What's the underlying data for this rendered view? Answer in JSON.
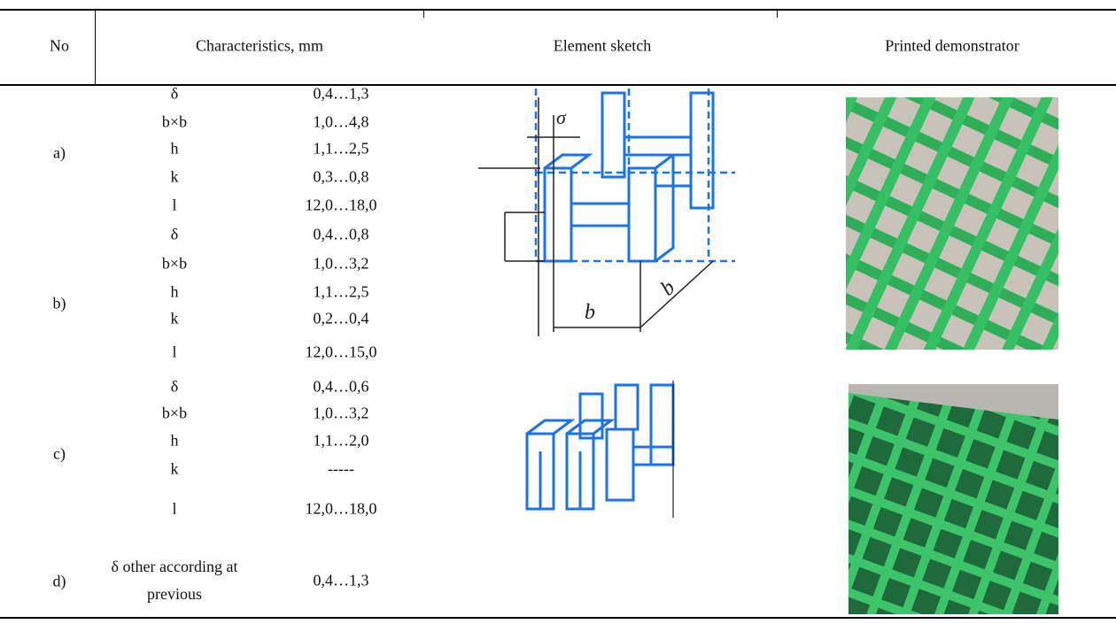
{
  "table": {
    "header": [
      "No",
      "Characteristics, mm",
      "Element sketch",
      "Printed demonstrator"
    ],
    "rows": [
      {
        "label": "a)",
        "params": [
          [
            "δ",
            "0,4…1,3"
          ],
          [
            "b×b",
            "1,0…4,8"
          ],
          [
            "h",
            "1,1…2,5"
          ],
          [
            "k",
            "0,3…0,8"
          ],
          [
            "l",
            "12,0…18,0"
          ]
        ]
      },
      {
        "label": "b)",
        "params": [
          [
            "δ",
            "0,4…0,8"
          ],
          [
            "b×b",
            "1,0…3,2"
          ],
          [
            "h",
            "1,1…2,5"
          ],
          [
            "k",
            "0,2…0,4"
          ],
          [
            "l",
            "12,0…15,0"
          ]
        ]
      },
      {
        "label": "c)",
        "params": [
          [
            "δ",
            "0,4…0,6"
          ],
          [
            "b×b",
            "1,0…3,2"
          ],
          [
            "h",
            "1,1…2,0"
          ],
          [
            "k",
            "-----"
          ],
          [
            "l",
            "12,0…18,0"
          ]
        ]
      },
      {
        "label": "d)",
        "params": [
          [
            "δ other according at previous",
            "0,4…1,3"
          ]
        ]
      }
    ]
  }
}
